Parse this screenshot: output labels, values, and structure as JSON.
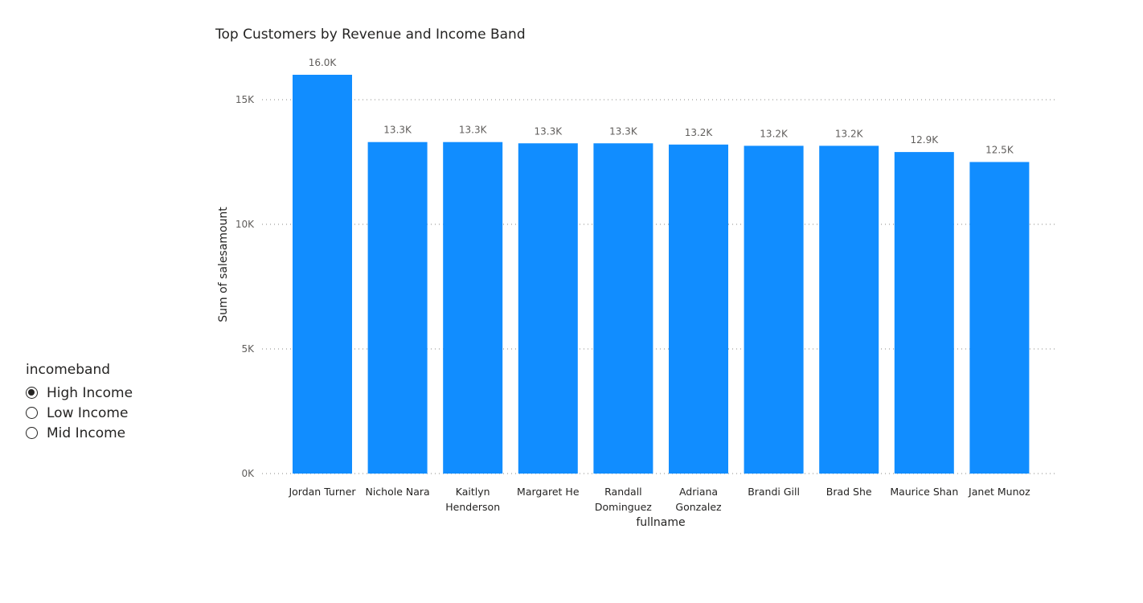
{
  "slicer": {
    "title": "incomeband",
    "options": [
      {
        "label": "High Income",
        "selected": true
      },
      {
        "label": "Low Income",
        "selected": false
      },
      {
        "label": "Mid Income",
        "selected": false
      }
    ]
  },
  "chart_data": {
    "type": "bar",
    "title": "Top Customers by Revenue and Income Band",
    "xlabel": "fullname",
    "ylabel": "Sum of salesamount",
    "categories": [
      [
        "Jordan Turner"
      ],
      [
        "Nichole Nara"
      ],
      [
        "Kaitlyn",
        "Henderson"
      ],
      [
        "Margaret He"
      ],
      [
        "Randall",
        "Dominguez"
      ],
      [
        "Adriana",
        "Gonzalez"
      ],
      [
        "Brandi Gill"
      ],
      [
        "Brad She"
      ],
      [
        "Maurice Shan"
      ],
      [
        "Janet Munoz"
      ]
    ],
    "values": [
      16000,
      13300,
      13300,
      13250,
      13250,
      13200,
      13150,
      13150,
      12900,
      12500
    ],
    "data_labels": [
      "16.0K",
      "13.3K",
      "13.3K",
      "13.3K",
      "13.3K",
      "13.2K",
      "13.2K",
      "13.2K",
      "12.9K",
      "12.5K"
    ],
    "ylim": [
      0,
      17000
    ],
    "yticks": [
      0,
      5000,
      10000,
      15000
    ],
    "ytick_labels": [
      "0K",
      "5K",
      "10K",
      "15K"
    ],
    "grid": true,
    "bar_color": "#118DFF"
  }
}
